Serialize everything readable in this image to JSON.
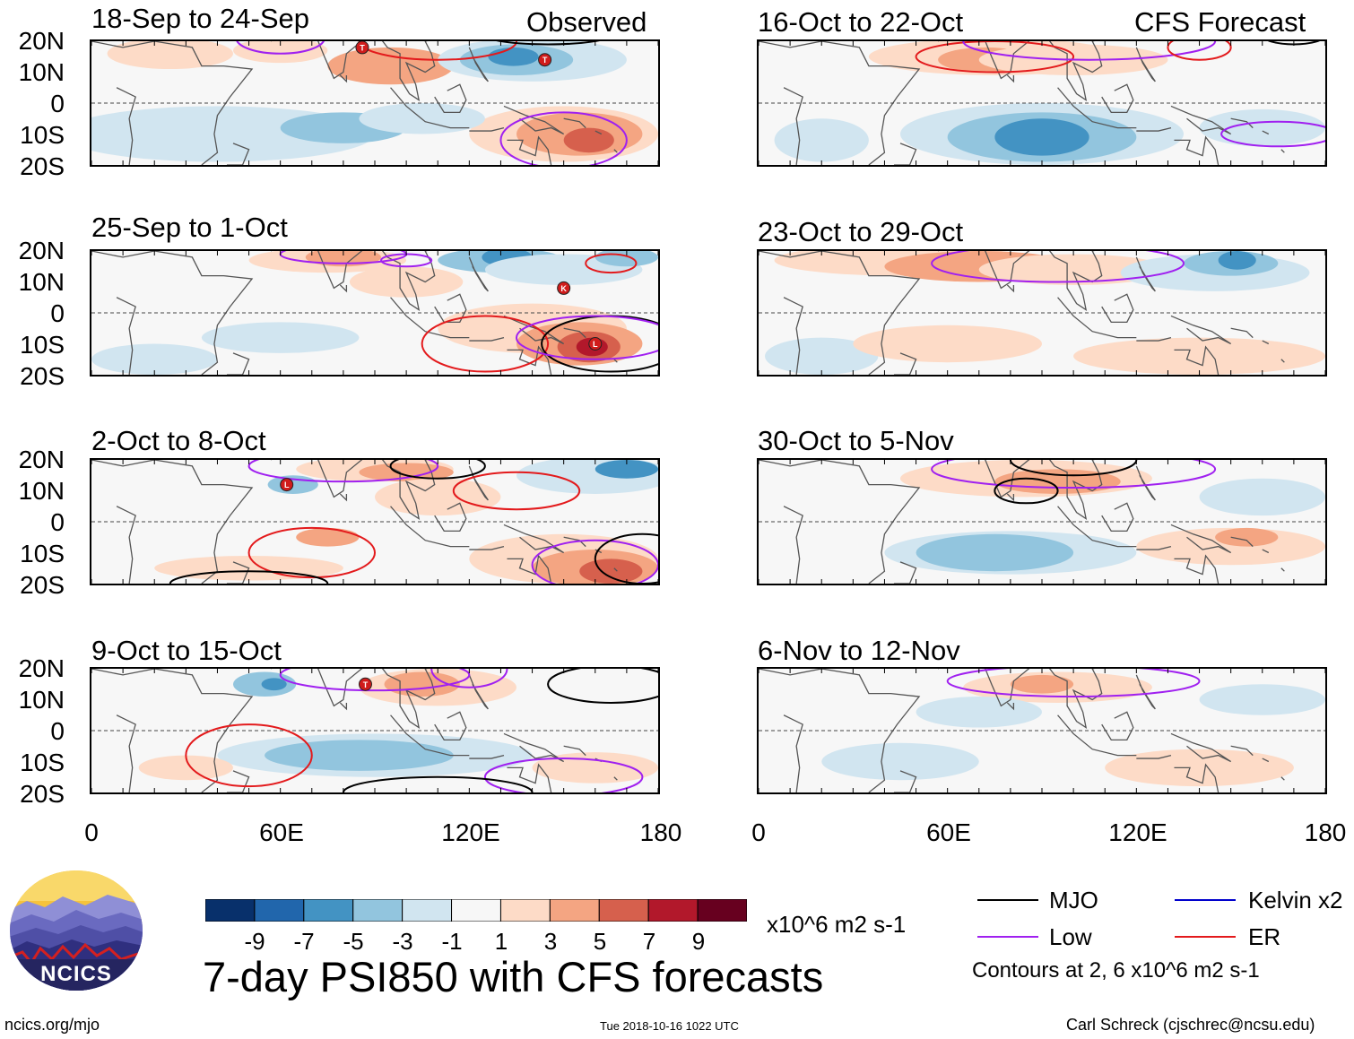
{
  "headers": {
    "observed": "Observed",
    "forecast": "CFS Forecast"
  },
  "panels_left": [
    {
      "title": "18-Sep to 24-Sep"
    },
    {
      "title": "25-Sep to 1-Oct"
    },
    {
      "title": "2-Oct to 8-Oct"
    },
    {
      "title": "9-Oct to 15-Oct"
    }
  ],
  "panels_right": [
    {
      "title": "16-Oct to 22-Oct"
    },
    {
      "title": "23-Oct to 29-Oct"
    },
    {
      "title": "30-Oct to 5-Nov"
    },
    {
      "title": "6-Nov to 12-Nov"
    }
  ],
  "lat_ticks": [
    "20N",
    "10N",
    "0",
    "10S",
    "20S"
  ],
  "lon_ticks": [
    "0",
    "60E",
    "120E",
    "180"
  ],
  "storm_markers": [
    {
      "panel": 0,
      "letter": "T",
      "lon": 144,
      "lat": 14
    },
    {
      "panel": 0,
      "letter": "T",
      "lon": 86,
      "lat": 18
    },
    {
      "panel": 1,
      "letter": "K",
      "lon": 150,
      "lat": 8
    },
    {
      "panel": 1,
      "letter": "L",
      "lon": 160,
      "lat": -10
    },
    {
      "panel": 2,
      "letter": "L",
      "lon": 62,
      "lat": 12
    },
    {
      "panel": 3,
      "letter": "T",
      "lon": 87,
      "lat": 15
    }
  ],
  "colorbar": {
    "ticks": [
      "-9",
      "-7",
      "-5",
      "-3",
      "-1",
      "1",
      "3",
      "5",
      "7",
      "9"
    ],
    "colors": [
      "#08306b",
      "#2166ac",
      "#4393c3",
      "#92c5de",
      "#d1e5f0",
      "#f7f7f7",
      "#fddbc7",
      "#f4a582",
      "#d6604d",
      "#b2182b",
      "#67001f"
    ],
    "units": "x10^6 m2 s-1"
  },
  "main_title": "7-day PSI850 with CFS forecasts",
  "legend": {
    "items": [
      {
        "label": "MJO",
        "color": "#000000"
      },
      {
        "label": "Kelvin x2",
        "color": "#0000cc"
      },
      {
        "label": "Low",
        "color": "#a020f0"
      },
      {
        "label": "ER",
        "color": "#e31a1c"
      }
    ],
    "note": "Contours at 2, 6 x10^6 m2 s-1"
  },
  "logo_text": "NCICS",
  "footer": {
    "url": "ncics.org/mjo",
    "timestamp": "Tue 2018-10-16 1022 UTC",
    "credit": "Carl Schreck (cjschrec@ncsu.edu)"
  }
}
